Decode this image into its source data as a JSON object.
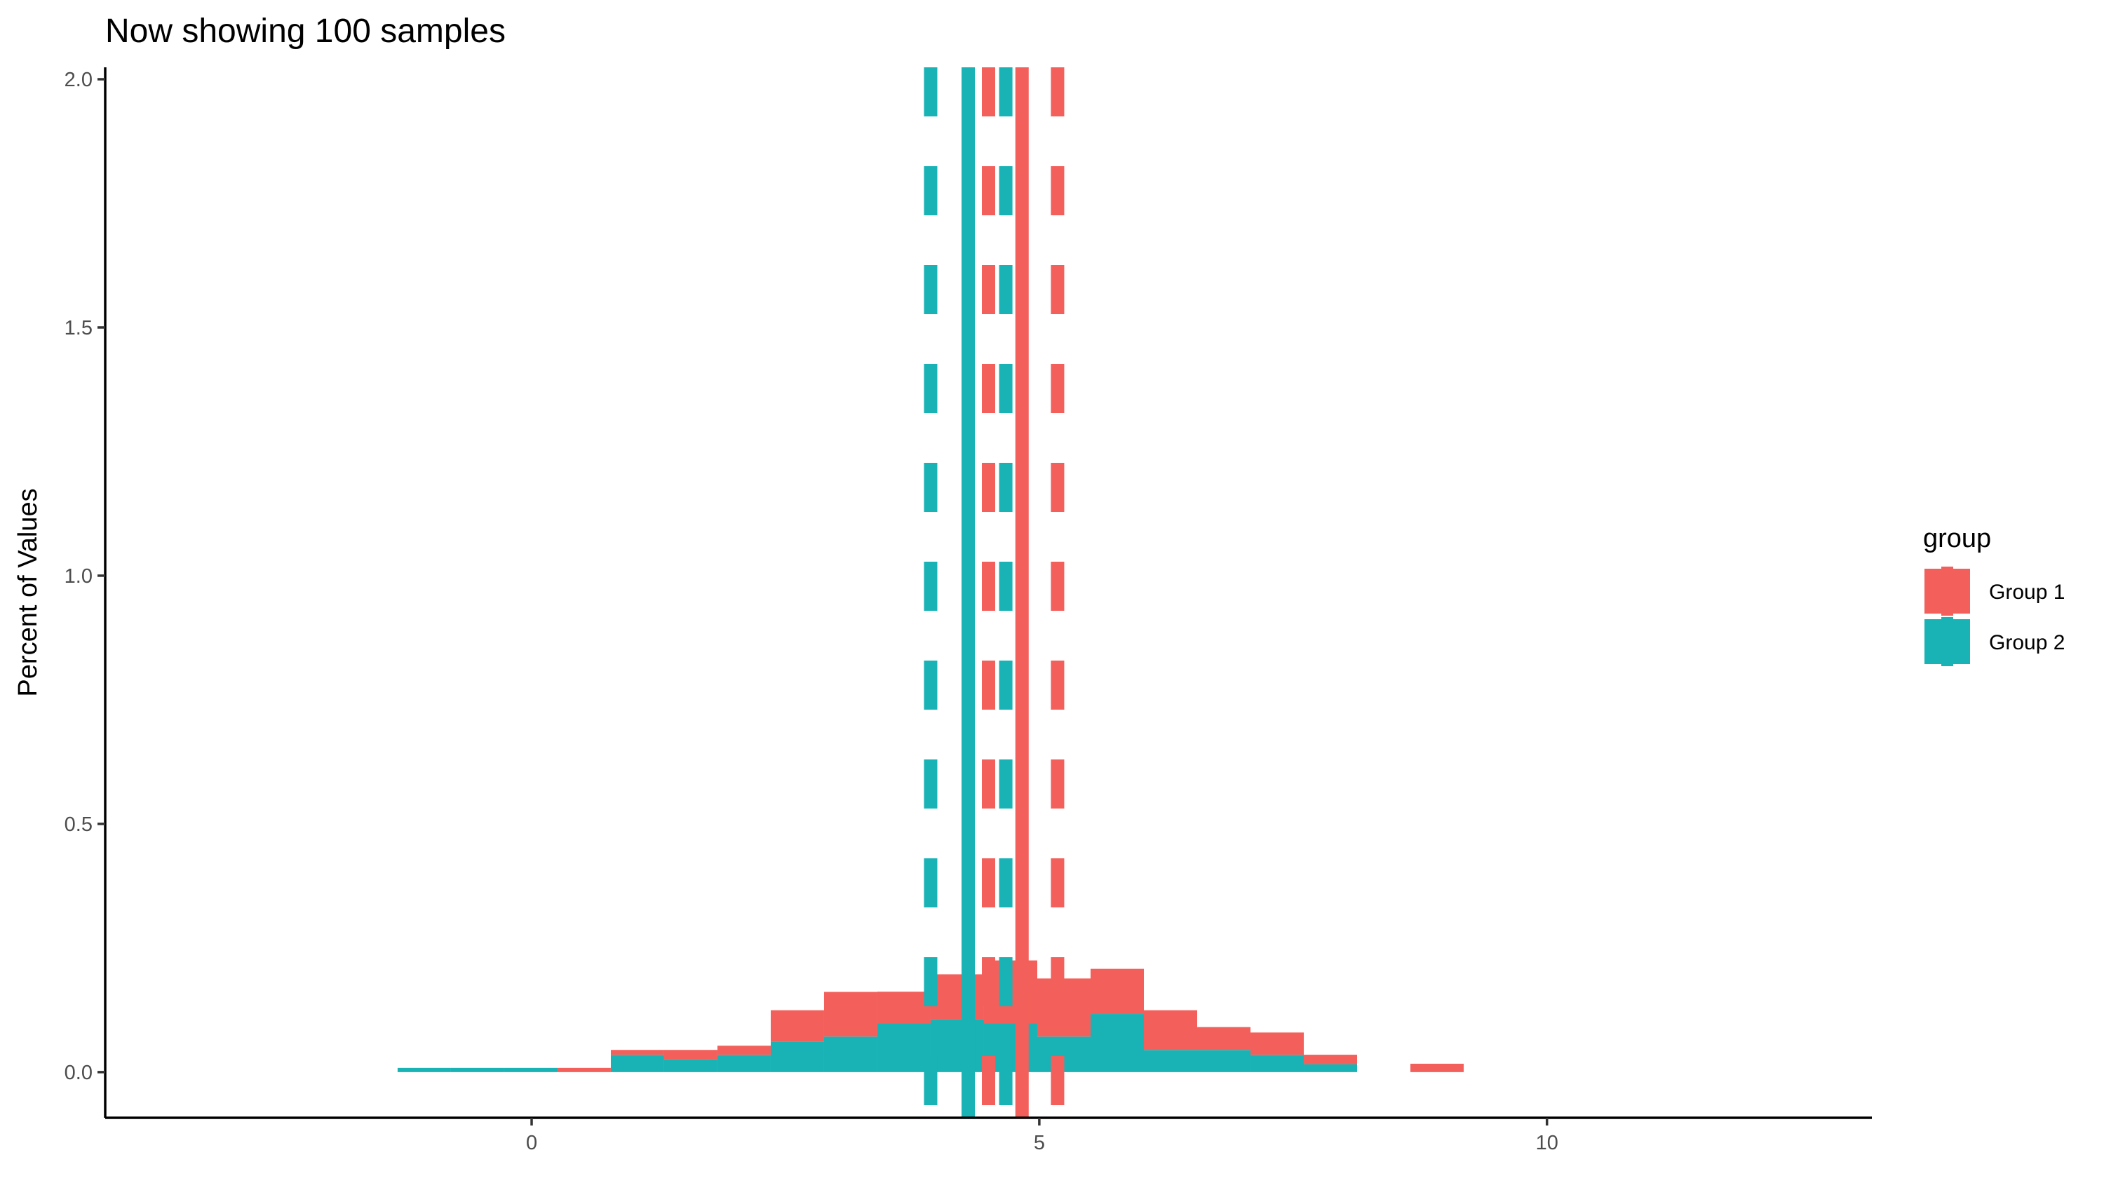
{
  "chart_data": {
    "type": "bar",
    "subtype": "stacked histogram with mean and CI reference lines",
    "title": "Now showing 100 samples",
    "xlabel": "",
    "ylabel": "Percent of Values",
    "xlim": [
      -4.2,
      13.2
    ],
    "ylim": [
      -0.092,
      2.024
    ],
    "x_ticks": [
      {
        "value": 0,
        "label": "0"
      },
      {
        "value": 5,
        "label": "5"
      },
      {
        "value": 10,
        "label": "10"
      }
    ],
    "y_ticks": [
      {
        "value": 0,
        "label": "0.0"
      },
      {
        "value": 0.5,
        "label": "0.5"
      },
      {
        "value": 1,
        "label": "1.0"
      },
      {
        "value": 1.5,
        "label": "1.5"
      },
      {
        "value": 2,
        "label": "2.0"
      }
    ],
    "grid": false,
    "legend": {
      "title": "group",
      "placement": "right"
    },
    "bin_start": -1.32,
    "bin_width": 0.525,
    "series": [
      {
        "name": "Group 1",
        "color": "#F3605B",
        "values": [
          0,
          0,
          0,
          0.0085,
          0.0099,
          0.0183,
          0.0184,
          0.063,
          0.09,
          0.064,
          0.09,
          0.127,
          0.117,
          0.091,
          0.08,
          0.046,
          0.045,
          0.019,
          0,
          0.0169
        ],
        "mean": 4.83,
        "ci": [
          4.5,
          5.18
        ]
      },
      {
        "name": "Group 2",
        "color": "#19B3B6",
        "values": [
          0.0085,
          0.0085,
          0.0085,
          0,
          0.0348,
          0.0264,
          0.0348,
          0.0617,
          0.0716,
          0.098,
          0.107,
          0.098,
          0.0716,
          0.117,
          0.0447,
          0.0447,
          0.0348,
          0.016,
          0,
          0
        ],
        "mean": 4.3,
        "ci": [
          3.93,
          4.67
        ]
      }
    ]
  }
}
